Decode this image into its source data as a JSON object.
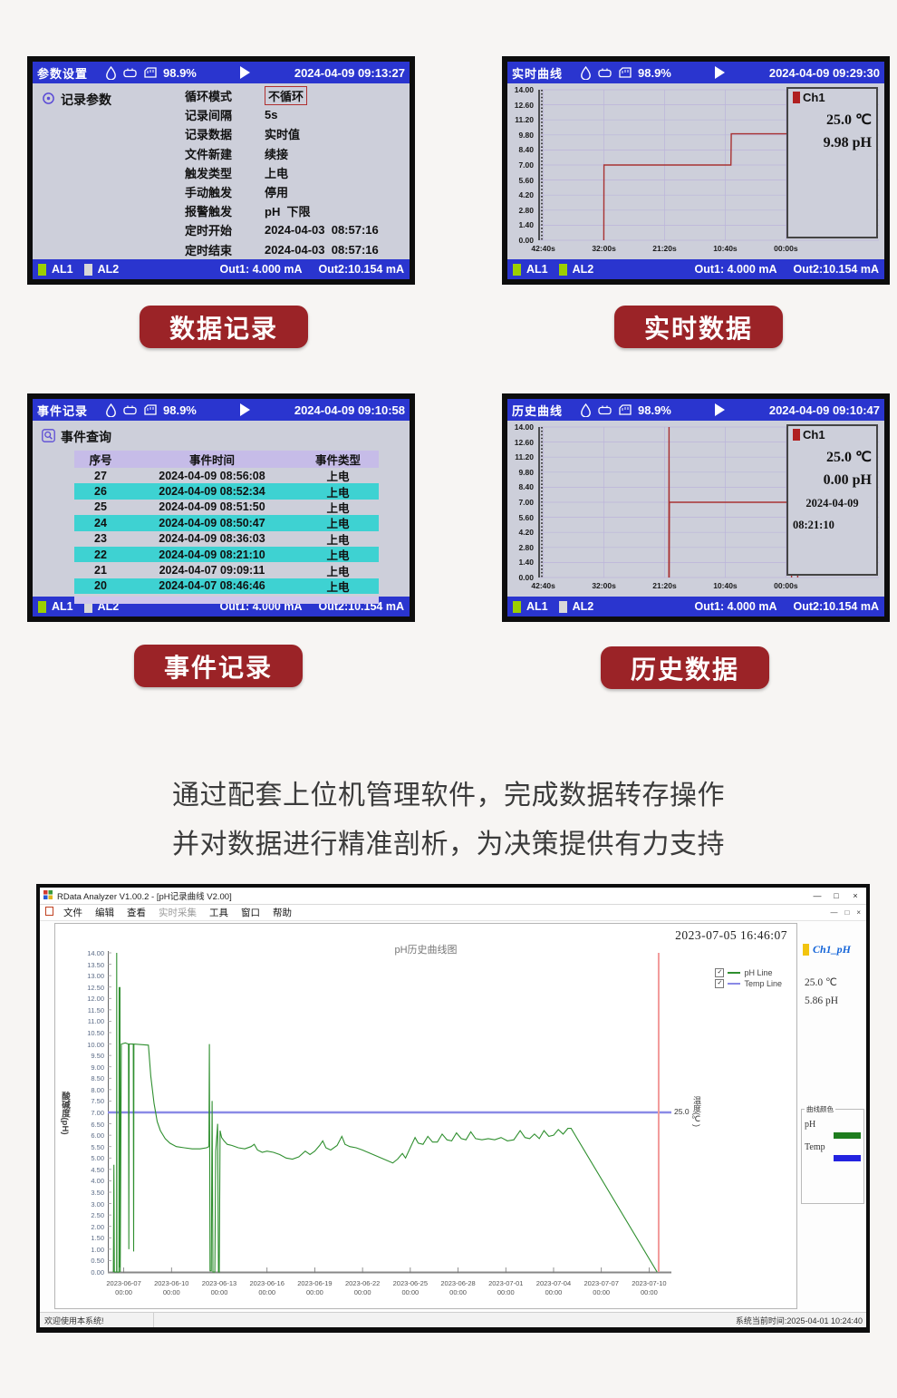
{
  "page": {
    "description_line1": "通过配套上位机管理软件，完成数据转存操作",
    "description_line2": "并对数据进行精准剖析，为决策提供有力支持",
    "badges": {
      "b1": "数据记录",
      "b2": "实时数据",
      "b3": "事件记录",
      "b4": "历史数据"
    },
    "accent_red": "#9b2327"
  },
  "device": {
    "battery": "98.9%",
    "al1": "AL1",
    "al2": "AL2",
    "out1": "Out1: 4.000 mA",
    "out2": "Out2:10.154 mA",
    "titlebar_blue": "#2a35cf",
    "screen_bg": "#cdcfda",
    "alarm_green": "#9ccf00",
    "alarm_gray": "#d8d8d8",
    "curve_red": "#a83232",
    "table_header_purple": "#c6bce8",
    "row_highlight_cyan": "#3ed2d2"
  },
  "settings_panel": {
    "title": "参数设置",
    "datetime": "2024-04-09 09:13:27",
    "section": "记录参数",
    "al1_on": true,
    "al2_on": false,
    "params": [
      {
        "label": "循环模式",
        "value": "不循环",
        "boxed": true
      },
      {
        "label": "记录间隔",
        "value": "5s",
        "boxed": false
      },
      {
        "label": "记录数据",
        "value": "实时值",
        "boxed": false
      },
      {
        "label": "文件新建",
        "value": "续接",
        "boxed": false
      },
      {
        "label": "触发类型",
        "value": "上电",
        "boxed": false
      },
      {
        "label": "手动触发",
        "value": "停用",
        "boxed": false
      },
      {
        "label": "报警触发",
        "value": "pH  下限",
        "boxed": false
      },
      {
        "label": "定时开始",
        "value": "2024-04-03  08:57:16",
        "boxed": false
      },
      {
        "label": "定时结束",
        "value": "2024-04-03  08:57:16",
        "boxed": false
      }
    ]
  },
  "realtime_panel": {
    "title": "实时曲线",
    "datetime": "2024-04-09 09:29:30",
    "al1_on": true,
    "al2_on": true,
    "legend_ch": "Ch1",
    "legend_temp": "25.0 ℃",
    "legend_ph": "9.98 pH"
  },
  "events_panel": {
    "title": "事件记录",
    "datetime": "2024-04-09 09:10:58",
    "section": "事件查询",
    "al1_on": true,
    "al2_on": false,
    "columns": [
      "序号",
      "事件时间",
      "事件类型"
    ],
    "rows": [
      {
        "no": "27",
        "time": "2024-04-09 08:56:08",
        "type": "上电",
        "highlight": false
      },
      {
        "no": "26",
        "time": "2024-04-09 08:52:34",
        "type": "上电",
        "highlight": true
      },
      {
        "no": "25",
        "time": "2024-04-09 08:51:50",
        "type": "上电",
        "highlight": false
      },
      {
        "no": "24",
        "time": "2024-04-09 08:50:47",
        "type": "上电",
        "highlight": true
      },
      {
        "no": "23",
        "time": "2024-04-09 08:36:03",
        "type": "上电",
        "highlight": false
      },
      {
        "no": "22",
        "time": "2024-04-09 08:21:10",
        "type": "上电",
        "highlight": true
      },
      {
        "no": "21",
        "time": "2024-04-07 09:09:11",
        "type": "上电",
        "highlight": false
      },
      {
        "no": "20",
        "time": "2024-04-07 08:46:46",
        "type": "上电",
        "highlight": true
      }
    ]
  },
  "history_panel": {
    "title": "历史曲线",
    "datetime": "2024-04-09 09:10:47",
    "al1_on": true,
    "al2_on": false,
    "legend_ch": "Ch1",
    "legend_temp": "25.0 ℃",
    "legend_ph": "0.00 pH",
    "legend_date": "2024-04-09",
    "legend_time": "08:21:10"
  },
  "software": {
    "window_title": "RData Analyzer V1.00.2 - [pH记录曲线 V2.00]",
    "menus": [
      {
        "label": "文件",
        "disabled": false
      },
      {
        "label": "编辑",
        "disabled": false
      },
      {
        "label": "查看",
        "disabled": false
      },
      {
        "label": "实时采集",
        "disabled": true
      },
      {
        "label": "工具",
        "disabled": false
      },
      {
        "label": "窗口",
        "disabled": false
      },
      {
        "label": "帮助",
        "disabled": false
      }
    ],
    "win_min": "—",
    "win_restore": "□",
    "win_close": "×",
    "snapshot_time": "2023-07-05 16:46:07",
    "channel_label": "Ch1_pH",
    "channel_swatch": "#f2c40f",
    "channel_temp": "25.0 ℃",
    "channel_ph": "5.86 pH",
    "colorbox_title": "曲线颜色",
    "color_ph_label": "pH",
    "color_ph": "#1e7d1e",
    "color_temp_label": "Temp",
    "color_temp": "#2323e0",
    "status_left": "欢迎使用本系统!",
    "status_right": "系统当前时间:2025-04-01 10:24:40"
  },
  "chart_data": [
    {
      "id": "realtime_curve",
      "type": "line",
      "title": "实时曲线",
      "x_ticks": [
        "42:40s",
        "32:00s",
        "21:20s",
        "10:40s",
        "00:00s"
      ],
      "y_ticks": [
        "14.00",
        "12.60",
        "11.20",
        "9.80",
        "8.40",
        "7.00",
        "5.60",
        "4.20",
        "2.80",
        "1.40",
        "0.00"
      ],
      "ylim": [
        0,
        14
      ],
      "x_seconds_ticks": [
        2560,
        1920,
        1280,
        640,
        0
      ],
      "line_color": "#a83232",
      "series": [
        {
          "name": "Ch1 pH",
          "points": [
            [
              1922,
              0
            ],
            [
              1920,
              7.0
            ],
            [
              580,
              7.0
            ],
            [
              576,
              9.9
            ],
            [
              -250,
              9.9
            ]
          ]
        }
      ],
      "annotation": {
        "ch": "Ch1",
        "temp_c": 25.0,
        "ph": 9.98
      }
    },
    {
      "id": "history_curve",
      "type": "line",
      "title": "历史曲线",
      "x_ticks": [
        "42:40s",
        "32:00s",
        "21:20s",
        "10:40s",
        "00:00s"
      ],
      "y_ticks": [
        "14.00",
        "12.60",
        "11.20",
        "9.80",
        "8.40",
        "7.00",
        "5.60",
        "4.20",
        "2.80",
        "1.40",
        "0.00"
      ],
      "ylim": [
        0,
        14
      ],
      "x_seconds_ticks": [
        2560,
        1920,
        1280,
        640,
        0
      ],
      "line_color": "#a83232",
      "series": [
        {
          "name": "Ch1 pH",
          "points": [
            [
              1235,
              0
            ],
            [
              1233,
              14
            ],
            [
              1231,
              0
            ],
            [
              1229,
              7
            ],
            [
              -20,
              7
            ],
            [
              -25,
              3
            ],
            [
              -30,
              7
            ],
            [
              -55,
              7
            ],
            [
              -60,
              0
            ],
            [
              -65,
              7
            ],
            [
              -85,
              7
            ],
            [
              -90,
              3
            ],
            [
              -95,
              7
            ],
            [
              -120,
              7
            ],
            [
              -125,
              0
            ],
            [
              -130,
              7
            ],
            [
              -150,
              7
            ],
            [
              -155,
              3
            ],
            [
              -160,
              7
            ],
            [
              -170,
              7
            ]
          ]
        }
      ],
      "annotation": {
        "ch": "Ch1",
        "temp_c": 25.0,
        "ph": 0.0,
        "date": "2024-04-09",
        "time": "08:21:10"
      }
    },
    {
      "id": "ph_history",
      "type": "line",
      "title": "pH历史曲线图",
      "ylabel_left": "酸碱度(pH)",
      "ylabel_right": "温度(℃)",
      "right_tick": "25.0",
      "ylim": [
        0,
        14
      ],
      "y_step": 0.5,
      "x_days_range": [
        0,
        35.4
      ],
      "x_ticks": [
        {
          "day": 1,
          "date": "2023-06-07",
          "time": "00:00"
        },
        {
          "day": 4,
          "date": "2023-06-10",
          "time": "00:00"
        },
        {
          "day": 7,
          "date": "2023-06-13",
          "time": "00:00"
        },
        {
          "day": 10,
          "date": "2023-06-16",
          "time": "00:00"
        },
        {
          "day": 13,
          "date": "2023-06-19",
          "time": "00:00"
        },
        {
          "day": 16,
          "date": "2023-06-22",
          "time": "00:00"
        },
        {
          "day": 19,
          "date": "2023-06-25",
          "time": "00:00"
        },
        {
          "day": 22,
          "date": "2023-06-28",
          "time": "00:00"
        },
        {
          "day": 25,
          "date": "2023-07-01",
          "time": "00:00"
        },
        {
          "day": 28,
          "date": "2023-07-04",
          "time": "00:00"
        },
        {
          "day": 31,
          "date": "2023-07-07",
          "time": "00:00"
        },
        {
          "day": 34,
          "date": "2023-07-10",
          "time": "00:00"
        }
      ],
      "legend": [
        {
          "label": "pH Line",
          "color": "#2f8f2f"
        },
        {
          "label": "Temp Line",
          "color": "#8a8ae6"
        }
      ],
      "series": [
        {
          "name": "pH Line",
          "color": "#2f8f2f",
          "points": [
            [
              0.35,
              0
            ],
            [
              0.38,
              4.7
            ],
            [
              0.41,
              0
            ],
            [
              0.55,
              0
            ],
            [
              0.56,
              14
            ],
            [
              0.57,
              0
            ],
            [
              0.7,
              0
            ],
            [
              0.71,
              12.5
            ],
            [
              0.73,
              0.2
            ],
            [
              0.76,
              12.5
            ],
            [
              0.78,
              0
            ],
            [
              0.85,
              10.0
            ],
            [
              1.1,
              10.05
            ],
            [
              1.3,
              10.0
            ],
            [
              1.32,
              1.0
            ],
            [
              1.34,
              10.0
            ],
            [
              1.6,
              10.0
            ],
            [
              1.62,
              0.9
            ],
            [
              1.64,
              10.0
            ],
            [
              2.55,
              9.95
            ],
            [
              2.7,
              8.6
            ],
            [
              2.9,
              7.4
            ],
            [
              3.1,
              6.6
            ],
            [
              3.3,
              6.2
            ],
            [
              3.6,
              5.85
            ],
            [
              3.9,
              5.65
            ],
            [
              4.3,
              5.5
            ],
            [
              4.8,
              5.45
            ],
            [
              5.3,
              5.4
            ],
            [
              5.8,
              5.4
            ],
            [
              6.2,
              5.45
            ],
            [
              6.35,
              5.5
            ],
            [
              6.38,
              10.0
            ],
            [
              6.42,
              0.05
            ],
            [
              6.5,
              0.05
            ],
            [
              6.55,
              7.5
            ],
            [
              6.6,
              0.0
            ],
            [
              6.72,
              0.0
            ],
            [
              6.78,
              5.3
            ],
            [
              6.9,
              6.5
            ],
            [
              6.95,
              0.0
            ],
            [
              7.0,
              0.0
            ],
            [
              7.05,
              6.2
            ],
            [
              7.15,
              5.9
            ],
            [
              7.3,
              5.75
            ],
            [
              7.5,
              5.6
            ],
            [
              7.8,
              5.55
            ],
            [
              8.2,
              5.45
            ],
            [
              8.6,
              5.4
            ],
            [
              9.0,
              5.5
            ],
            [
              9.2,
              5.6
            ],
            [
              9.4,
              5.35
            ],
            [
              9.7,
              5.25
            ],
            [
              10.0,
              5.3
            ],
            [
              10.4,
              5.25
            ],
            [
              10.8,
              5.15
            ],
            [
              11.2,
              5.0
            ],
            [
              11.6,
              4.95
            ],
            [
              12.0,
              5.05
            ],
            [
              12.4,
              5.3
            ],
            [
              12.7,
              5.15
            ],
            [
              13.0,
              5.3
            ],
            [
              13.3,
              5.55
            ],
            [
              13.5,
              5.75
            ],
            [
              13.7,
              5.45
            ],
            [
              14.0,
              5.35
            ],
            [
              14.4,
              5.55
            ],
            [
              14.7,
              5.95
            ],
            [
              14.9,
              5.6
            ],
            [
              15.2,
              5.5
            ],
            [
              15.6,
              5.45
            ],
            [
              16.0,
              5.35
            ],
            [
              16.5,
              5.2
            ],
            [
              17.0,
              5.05
            ],
            [
              17.5,
              4.9
            ],
            [
              17.9,
              4.78
            ],
            [
              18.2,
              4.95
            ],
            [
              18.5,
              5.2
            ],
            [
              18.7,
              5.0
            ],
            [
              19.0,
              5.45
            ],
            [
              19.3,
              5.9
            ],
            [
              19.5,
              5.65
            ],
            [
              19.8,
              5.6
            ],
            [
              20.1,
              5.95
            ],
            [
              20.4,
              5.7
            ],
            [
              20.7,
              5.7
            ],
            [
              21.0,
              6.05
            ],
            [
              21.3,
              5.8
            ],
            [
              21.6,
              5.75
            ],
            [
              21.9,
              6.1
            ],
            [
              22.2,
              5.85
            ],
            [
              22.5,
              5.8
            ],
            [
              22.8,
              6.15
            ],
            [
              23.1,
              5.85
            ],
            [
              23.5,
              5.8
            ],
            [
              23.9,
              5.85
            ],
            [
              24.3,
              5.8
            ],
            [
              24.7,
              5.9
            ],
            [
              25.1,
              5.75
            ],
            [
              25.5,
              5.8
            ],
            [
              25.9,
              6.2
            ],
            [
              26.2,
              5.9
            ],
            [
              26.5,
              5.85
            ],
            [
              26.8,
              6.05
            ],
            [
              27.1,
              5.85
            ],
            [
              27.4,
              6.2
            ],
            [
              27.7,
              5.95
            ],
            [
              28.0,
              6.0
            ],
            [
              28.3,
              6.25
            ],
            [
              28.6,
              6.05
            ],
            [
              28.9,
              6.3
            ],
            [
              29.1,
              6.3
            ],
            [
              34.5,
              0.0
            ]
          ]
        },
        {
          "name": "Temp Line",
          "color": "#8a8ae6",
          "value_c": 25.0,
          "points": [
            [
              0,
              7
            ],
            [
              35.4,
              7
            ]
          ]
        }
      ],
      "marker": {
        "type": "vline",
        "day": 34.6,
        "color": "#f29a9a"
      }
    }
  ]
}
